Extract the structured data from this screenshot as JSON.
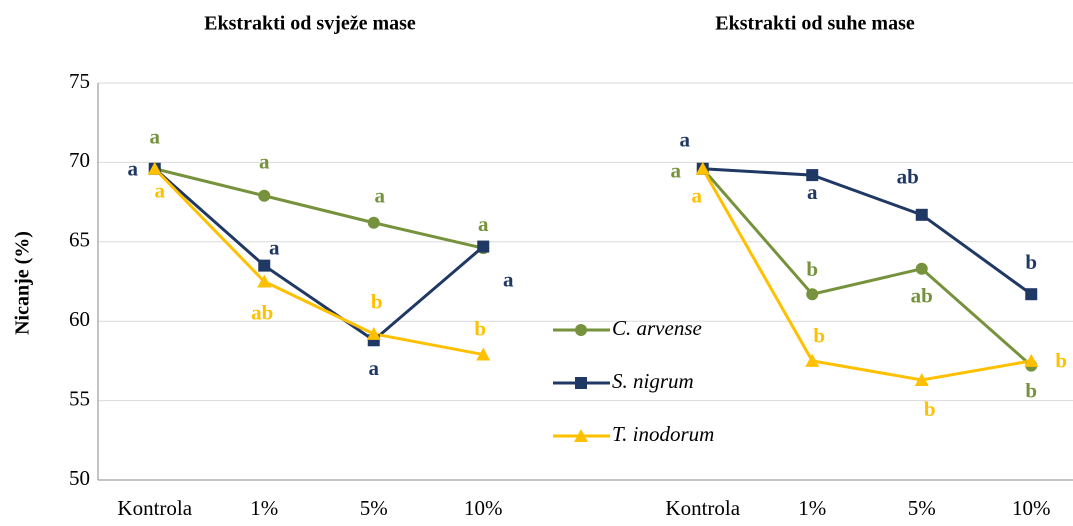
{
  "chart_data": [
    {
      "type": "line",
      "title": "Ekstrakti od svježe mase",
      "ylabel": "Nicanje (%)",
      "categories": [
        "Kontrola",
        "1%",
        "5%",
        "10%"
      ],
      "ylim": [
        50,
        75
      ],
      "yticks": [
        50,
        55,
        60,
        65,
        70,
        75
      ],
      "grid": true,
      "series": [
        {
          "name": "C. arvense",
          "color": "#76923c",
          "marker": "circle",
          "values": [
            69.6,
            67.9,
            66.2,
            64.6
          ],
          "annotations": [
            "a",
            "a",
            "a",
            "a"
          ]
        },
        {
          "name": "S. nigrum",
          "color": "#203864",
          "marker": "square",
          "values": [
            69.6,
            63.5,
            58.8,
            64.7
          ],
          "annotations": [
            "a",
            "a",
            "a",
            "a"
          ]
        },
        {
          "name": "T. inodorum",
          "color": "#ffc000",
          "marker": "triangle",
          "values": [
            69.6,
            62.5,
            59.2,
            57.9
          ],
          "annotations": [
            "a",
            "ab",
            "b",
            "b"
          ]
        }
      ]
    },
    {
      "type": "line",
      "title": "Ekstrakti od suhe mase",
      "categories": [
        "Kontrola",
        "1%",
        "5%",
        "10%"
      ],
      "ylim": [
        50,
        75
      ],
      "series": [
        {
          "color": "#76923c",
          "marker": "circle",
          "values": [
            69.6,
            61.7,
            63.3,
            57.2
          ],
          "annotations": [
            "a",
            "b",
            "ab",
            "b"
          ]
        },
        {
          "color": "#203864",
          "marker": "square",
          "values": [
            69.6,
            69.2,
            66.7,
            61.7
          ],
          "annotations": [
            "a",
            "a",
            "ab",
            "b"
          ]
        },
        {
          "color": "#ffc000",
          "marker": "triangle",
          "values": [
            69.6,
            57.5,
            56.3,
            57.5
          ],
          "annotations": [
            "a",
            "b",
            "b",
            "b"
          ]
        }
      ]
    }
  ]
}
